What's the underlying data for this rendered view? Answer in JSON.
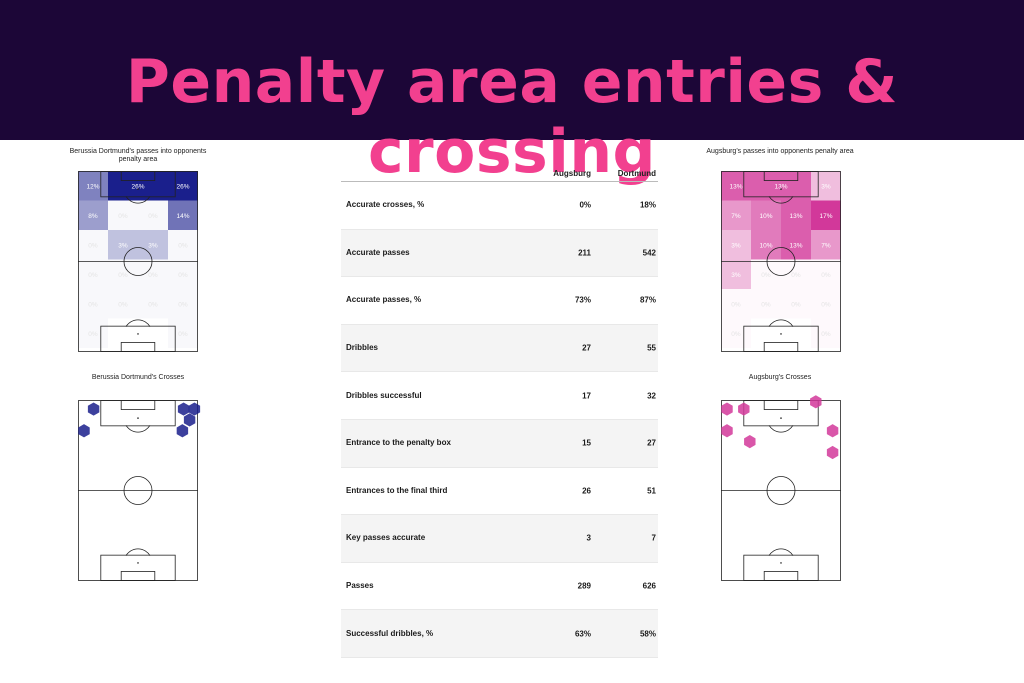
{
  "page_title": "Penalty area entries & crossing",
  "colors": {
    "banner_bg": "#1c0637",
    "title": "#f2408f",
    "dortmund": "#1a1f8c",
    "augsburg": "#d2389a"
  },
  "chart_data": [
    {
      "id": "dortmund_pass_grid",
      "type": "heatmap",
      "title": "Berussia Dortmund's passes into opponents penalty area",
      "color": "#1a1f8c",
      "cells": [
        {
          "r": 0,
          "c": 0,
          "v": 12
        },
        {
          "r": 0,
          "c": 1,
          "v": 26,
          "span": 2
        },
        {
          "r": 0,
          "c": 3,
          "v": 26
        },
        {
          "r": 1,
          "c": 0,
          "v": 8
        },
        {
          "r": 1,
          "c": 1,
          "v": 0
        },
        {
          "r": 1,
          "c": 2,
          "v": 0
        },
        {
          "r": 1,
          "c": 3,
          "v": 14
        },
        {
          "r": 2,
          "c": 0,
          "v": 0
        },
        {
          "r": 2,
          "c": 1,
          "v": 3
        },
        {
          "r": 2,
          "c": 2,
          "v": 3
        },
        {
          "r": 2,
          "c": 3,
          "v": 0
        },
        {
          "r": 3,
          "c": 0,
          "v": 0
        },
        {
          "r": 3,
          "c": 1,
          "v": 0
        },
        {
          "r": 3,
          "c": 2,
          "v": 0
        },
        {
          "r": 3,
          "c": 3,
          "v": 0
        },
        {
          "r": 4,
          "c": 0,
          "v": 0
        },
        {
          "r": 4,
          "c": 1,
          "v": 0
        },
        {
          "r": 4,
          "c": 2,
          "v": 0
        },
        {
          "r": 4,
          "c": 3,
          "v": 0
        },
        {
          "r": 5,
          "c": 0,
          "v": 0
        },
        {
          "r": 5,
          "c": 3,
          "v": 0
        }
      ]
    },
    {
      "id": "augsburg_pass_grid",
      "type": "heatmap",
      "title": "Augsburg's passes into opponents penalty area",
      "color": "#d2389a",
      "cells": [
        {
          "r": 0,
          "c": 0,
          "v": 13
        },
        {
          "r": 0,
          "c": 1,
          "v": 13,
          "span": 2
        },
        {
          "r": 0,
          "c": 3,
          "v": 3
        },
        {
          "r": 1,
          "c": 0,
          "v": 7
        },
        {
          "r": 1,
          "c": 1,
          "v": 10
        },
        {
          "r": 1,
          "c": 2,
          "v": 13
        },
        {
          "r": 1,
          "c": 3,
          "v": 17
        },
        {
          "r": 2,
          "c": 0,
          "v": 3
        },
        {
          "r": 2,
          "c": 1,
          "v": 10
        },
        {
          "r": 2,
          "c": 2,
          "v": 13
        },
        {
          "r": 2,
          "c": 3,
          "v": 7
        },
        {
          "r": 3,
          "c": 0,
          "v": 3
        },
        {
          "r": 3,
          "c": 1,
          "v": 0
        },
        {
          "r": 3,
          "c": 2,
          "v": 0
        },
        {
          "r": 3,
          "c": 3,
          "v": 0
        },
        {
          "r": 4,
          "c": 0,
          "v": 0
        },
        {
          "r": 4,
          "c": 1,
          "v": 0
        },
        {
          "r": 4,
          "c": 2,
          "v": 0
        },
        {
          "r": 4,
          "c": 3,
          "v": 0
        },
        {
          "r": 5,
          "c": 0,
          "v": 0
        },
        {
          "r": 5,
          "c": 3,
          "v": 0
        }
      ]
    },
    {
      "id": "dortmund_crosses",
      "type": "scatter",
      "title": "Berussia Dortmund's Crosses",
      "color": "#1a1f8c",
      "points": [
        [
          0.13,
          0.05
        ],
        [
          0.88,
          0.05
        ],
        [
          0.97,
          0.05
        ],
        [
          0.93,
          0.11
        ],
        [
          0.05,
          0.17
        ],
        [
          0.87,
          0.17
        ]
      ]
    },
    {
      "id": "augsburg_crosses",
      "type": "scatter",
      "title": "Augsburg's Crosses",
      "color": "#d2389a",
      "points": [
        [
          0.05,
          0.05
        ],
        [
          0.19,
          0.05
        ],
        [
          0.79,
          0.01
        ],
        [
          0.05,
          0.17
        ],
        [
          0.24,
          0.23
        ],
        [
          0.93,
          0.17
        ],
        [
          0.93,
          0.29
        ]
      ]
    },
    {
      "id": "stats_table",
      "type": "table",
      "columns": [
        "",
        "Augsburg",
        "Dortmund"
      ],
      "rows": [
        [
          "Accurate crosses, %",
          "0%",
          "18%"
        ],
        [
          "Accurate passes",
          "211",
          "542"
        ],
        [
          "Accurate passes, %",
          "73%",
          "87%"
        ],
        [
          "Dribbles",
          "27",
          "55"
        ],
        [
          "Dribbles successful",
          "17",
          "32"
        ],
        [
          "Entrance to the penalty box",
          "15",
          "27"
        ],
        [
          "Entrances to the final third",
          "26",
          "51"
        ],
        [
          "Key passes accurate",
          "3",
          "7"
        ],
        [
          "Passes",
          "289",
          "626"
        ],
        [
          "Successful dribbles, %",
          "63%",
          "58%"
        ]
      ]
    }
  ]
}
